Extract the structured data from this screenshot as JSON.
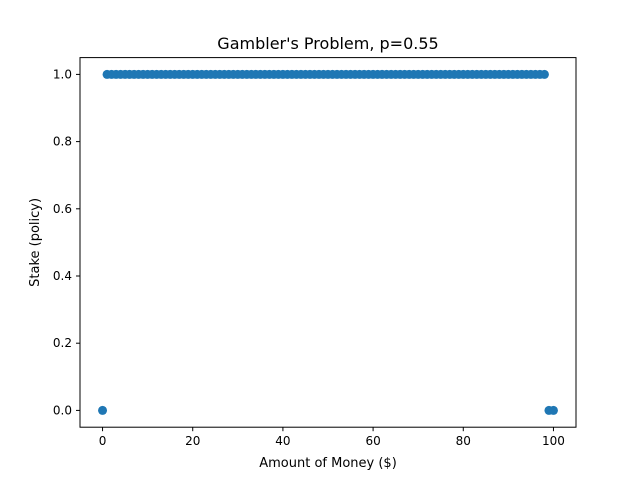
{
  "chart_data": {
    "type": "scatter",
    "title": "Gambler's Problem, p=0.55",
    "xlabel": "Amount of Money ($)",
    "ylabel": "Stake (policy)",
    "xlim": [
      -5,
      105
    ],
    "ylim": [
      -0.05,
      1.05
    ],
    "xticks": [
      0,
      20,
      40,
      60,
      80,
      100
    ],
    "yticks": [
      0.0,
      0.2,
      0.4,
      0.6,
      0.8,
      1.0
    ],
    "xtick_labels": [
      "0",
      "20",
      "40",
      "60",
      "80",
      "100"
    ],
    "ytick_labels": [
      "0.0",
      "0.2",
      "0.4",
      "0.6",
      "0.8",
      "1.0"
    ],
    "grid": false,
    "marker_color": "#1f77b4",
    "x": [
      0,
      1,
      2,
      3,
      4,
      5,
      6,
      7,
      8,
      9,
      10,
      11,
      12,
      13,
      14,
      15,
      16,
      17,
      18,
      19,
      20,
      21,
      22,
      23,
      24,
      25,
      26,
      27,
      28,
      29,
      30,
      31,
      32,
      33,
      34,
      35,
      36,
      37,
      38,
      39,
      40,
      41,
      42,
      43,
      44,
      45,
      46,
      47,
      48,
      49,
      50,
      51,
      52,
      53,
      54,
      55,
      56,
      57,
      58,
      59,
      60,
      61,
      62,
      63,
      64,
      65,
      66,
      67,
      68,
      69,
      70,
      71,
      72,
      73,
      74,
      75,
      76,
      77,
      78,
      79,
      80,
      81,
      82,
      83,
      84,
      85,
      86,
      87,
      88,
      89,
      90,
      91,
      92,
      93,
      94,
      95,
      96,
      97,
      98,
      99,
      100
    ],
    "y": [
      0,
      1,
      1,
      1,
      1,
      1,
      1,
      1,
      1,
      1,
      1,
      1,
      1,
      1,
      1,
      1,
      1,
      1,
      1,
      1,
      1,
      1,
      1,
      1,
      1,
      1,
      1,
      1,
      1,
      1,
      1,
      1,
      1,
      1,
      1,
      1,
      1,
      1,
      1,
      1,
      1,
      1,
      1,
      1,
      1,
      1,
      1,
      1,
      1,
      1,
      1,
      1,
      1,
      1,
      1,
      1,
      1,
      1,
      1,
      1,
      1,
      1,
      1,
      1,
      1,
      1,
      1,
      1,
      1,
      1,
      1,
      1,
      1,
      1,
      1,
      1,
      1,
      1,
      1,
      1,
      1,
      1,
      1,
      1,
      1,
      1,
      1,
      1,
      1,
      1,
      1,
      1,
      1,
      1,
      1,
      1,
      1,
      1,
      1,
      0,
      0
    ]
  }
}
